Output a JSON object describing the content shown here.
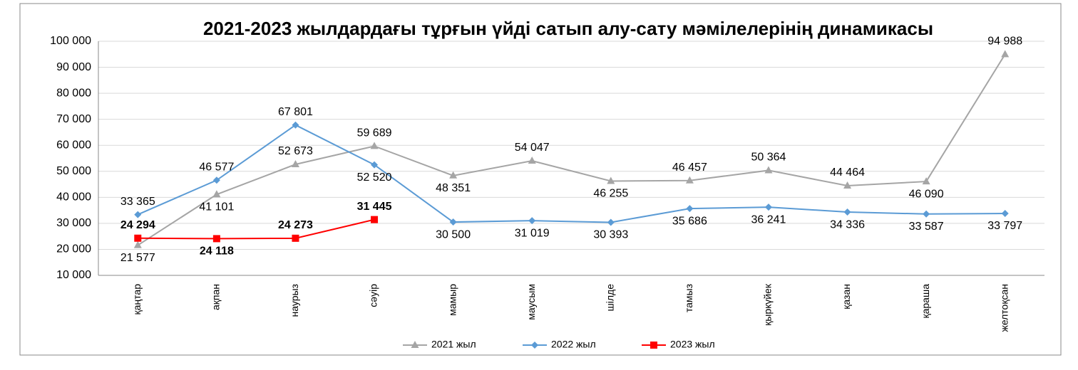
{
  "chart_data": {
    "type": "line",
    "title": "2021-2023 жылдардағы тұрғын үйді сатып алу-сату мәмілелерінің динамикасы",
    "categories": [
      "қаңтар",
      "ақпан",
      "наурыз",
      "сәуір",
      "мамыр",
      "маусым",
      "шілде",
      "тамыз",
      "қыркүйек",
      "қазан",
      "қараша",
      "желтоқсан"
    ],
    "series": [
      {
        "name": "2021 жыл",
        "color": "#a5a5a5",
        "marker": "triangle",
        "values": [
          21577,
          41101,
          52673,
          59689,
          48351,
          54047,
          46255,
          46457,
          50364,
          44464,
          46090,
          94988
        ],
        "value_labels": [
          "21 577",
          "41 101",
          "52 673",
          "59 689",
          "48 351",
          "54 047",
          "46 255",
          "46 457",
          "50 364",
          "44 464",
          "46 090",
          "94 988"
        ]
      },
      {
        "name": "2022 жыл",
        "color": "#5b9bd5",
        "marker": "diamond",
        "values": [
          33365,
          46577,
          67801,
          52520,
          30500,
          31019,
          30393,
          35686,
          36241,
          34336,
          33587,
          33797
        ],
        "value_labels": [
          "33 365",
          "46 577",
          "67 801",
          "52 520",
          "30 500",
          "31 019",
          "30 393",
          "35 686",
          "36 241",
          "34 336",
          "33 587",
          "33 797"
        ]
      },
      {
        "name": "2023 жыл",
        "color": "#ff0000",
        "marker": "square",
        "values": [
          24294,
          24118,
          24273,
          31445,
          null,
          null,
          null,
          null,
          null,
          null,
          null,
          null
        ],
        "value_labels": [
          "24 294",
          "24 118",
          "24 273",
          "31 445",
          null,
          null,
          null,
          null,
          null,
          null,
          null,
          null
        ]
      }
    ],
    "ylim": [
      10000,
      100000
    ],
    "yticks": [
      {
        "value": 10000,
        "label": "10 000"
      },
      {
        "value": 20000,
        "label": "20 000"
      },
      {
        "value": 30000,
        "label": "30 000"
      },
      {
        "value": 40000,
        "label": "40 000"
      },
      {
        "value": 50000,
        "label": "50 000"
      },
      {
        "value": 60000,
        "label": "60 000"
      },
      {
        "value": 70000,
        "label": "70 000"
      },
      {
        "value": 80000,
        "label": "80 000"
      },
      {
        "value": 90000,
        "label": "90 000"
      },
      {
        "value": 100000,
        "label": "100 000"
      }
    ],
    "grid": true,
    "legend": "bottom"
  }
}
